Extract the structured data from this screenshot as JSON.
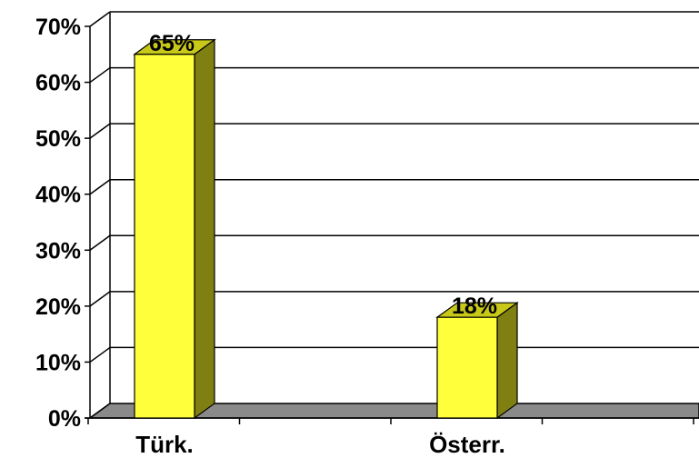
{
  "chart_data": {
    "type": "bar",
    "style": "3d",
    "categories": [
      "Türk.",
      "Österr."
    ],
    "values": [
      65,
      18
    ],
    "data_labels": [
      "65%",
      "18%"
    ],
    "y_ticks": [
      "0%",
      "10%",
      "20%",
      "30%",
      "40%",
      "50%",
      "60%",
      "70%"
    ],
    "ylim": [
      0,
      70
    ],
    "grid": true,
    "legend": "none",
    "title": "",
    "xlabel": "",
    "ylabel": "",
    "colors": {
      "bar_front": "#ffff3c",
      "bar_side": "#808012",
      "bar_top": "#c8c819",
      "floor": "#8a8a8a",
      "gridline": "#000000"
    }
  }
}
